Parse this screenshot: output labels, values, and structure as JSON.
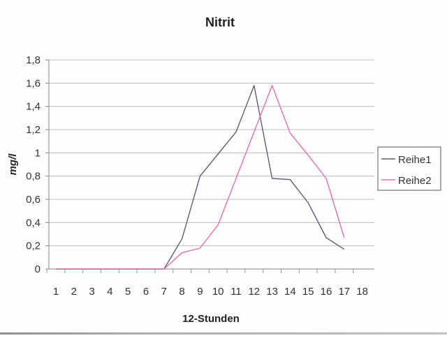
{
  "chart_data": {
    "type": "line",
    "title": "Nitrit",
    "xlabel": "12-Stunden",
    "ylabel": "mg/l",
    "ylim": [
      0,
      1.8
    ],
    "yticks": [
      {
        "value": 0,
        "label": "0"
      },
      {
        "value": 0.2,
        "label": "0,2"
      },
      {
        "value": 0.4,
        "label": "0,4"
      },
      {
        "value": 0.6,
        "label": "0,6"
      },
      {
        "value": 0.8,
        "label": "0,8"
      },
      {
        "value": 1.0,
        "label": "1"
      },
      {
        "value": 1.2,
        "label": "1,2"
      },
      {
        "value": 1.4,
        "label": "1,4"
      },
      {
        "value": 1.6,
        "label": "1,6"
      },
      {
        "value": 1.8,
        "label": "1,8"
      }
    ],
    "categories": [
      "1",
      "2",
      "3",
      "4",
      "5",
      "6",
      "7",
      "8",
      "9",
      "10",
      "11",
      "12",
      "13",
      "14",
      "15",
      "16",
      "17",
      "18"
    ],
    "grid": true,
    "legend": "right",
    "series": [
      {
        "name": "Reihe1",
        "color": "#5b5f7a",
        "values": [
          0,
          0,
          0,
          0,
          0,
          0,
          0,
          0.26,
          0.8,
          0.99,
          1.18,
          1.58,
          0.78,
          0.77,
          0.57,
          0.27,
          0.17,
          null
        ]
      },
      {
        "name": "Reihe2",
        "color": "#e070b0",
        "values": [
          0,
          0,
          0,
          0,
          0,
          0,
          0,
          0.14,
          0.18,
          0.38,
          0.78,
          1.18,
          1.58,
          1.17,
          0.98,
          0.78,
          0.27,
          null
        ]
      }
    ]
  }
}
